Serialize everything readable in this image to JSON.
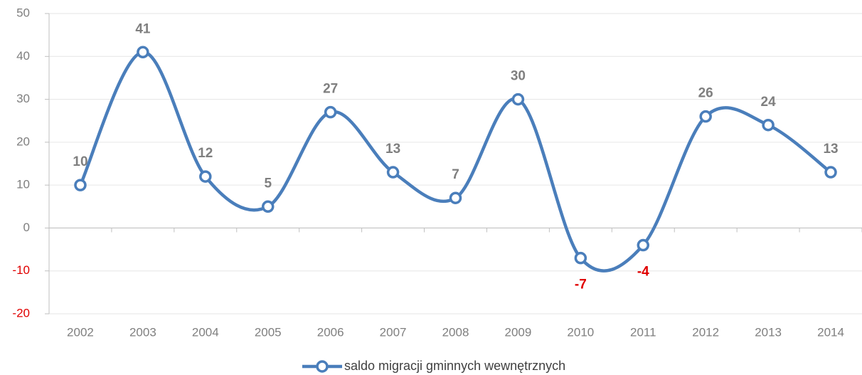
{
  "chart_data": {
    "type": "line",
    "categories": [
      "2002",
      "2003",
      "2004",
      "2005",
      "2006",
      "2007",
      "2008",
      "2009",
      "2010",
      "2011",
      "2012",
      "2013",
      "2014"
    ],
    "series": [
      {
        "name": "saldo migracji gminnych wewnętrznych",
        "color": "#4a7ebb",
        "values": [
          10,
          41,
          12,
          5,
          27,
          13,
          7,
          30,
          -7,
          -4,
          26,
          24,
          13
        ]
      }
    ],
    "ylim": [
      -20,
      50
    ],
    "yticks": [
      -20,
      -10,
      0,
      10,
      20,
      30,
      40,
      50
    ],
    "grid": true,
    "smooth": true,
    "data_labels": true,
    "negative_color": "#e00000",
    "legend": "bottom"
  }
}
